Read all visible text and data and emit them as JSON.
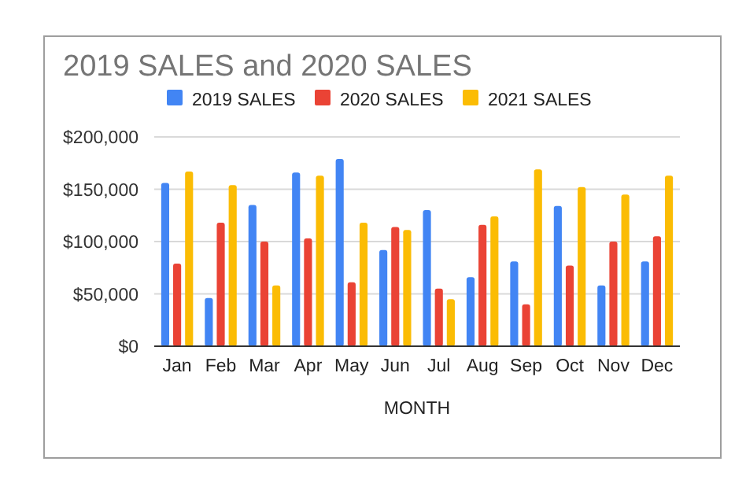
{
  "chart_data": {
    "type": "bar",
    "title": "2019 SALES and 2020 SALES",
    "xlabel": "MONTH",
    "categories": [
      "Jan",
      "Feb",
      "Mar",
      "Apr",
      "May",
      "Jun",
      "Jul",
      "Aug",
      "Sep",
      "Oct",
      "Nov",
      "Dec"
    ],
    "series": [
      {
        "name": "2019 SALES",
        "color": "#4285f4",
        "values": [
          156000,
          46000,
          135000,
          166000,
          179000,
          92000,
          130000,
          66000,
          81000,
          134000,
          58000,
          81000
        ]
      },
      {
        "name": "2020 SALES",
        "color": "#ea4335",
        "values": [
          79000,
          118000,
          100000,
          103000,
          61000,
          114000,
          55000,
          116000,
          40000,
          77000,
          100000,
          105000
        ]
      },
      {
        "name": "2021 SALES",
        "color": "#fbbc04",
        "values": [
          167000,
          154000,
          58000,
          163000,
          118000,
          111000,
          45000,
          124000,
          169000,
          152000,
          145000,
          163000
        ]
      }
    ],
    "ylim": [
      0,
      200000
    ],
    "yticks": [
      {
        "value": 0,
        "label": "$0"
      },
      {
        "value": 50000,
        "label": "$50,000"
      },
      {
        "value": 100000,
        "label": "$100,000"
      },
      {
        "value": 150000,
        "label": "$150,000"
      },
      {
        "value": 200000,
        "label": "$200,000"
      }
    ],
    "grid": "y",
    "legend": "top"
  }
}
